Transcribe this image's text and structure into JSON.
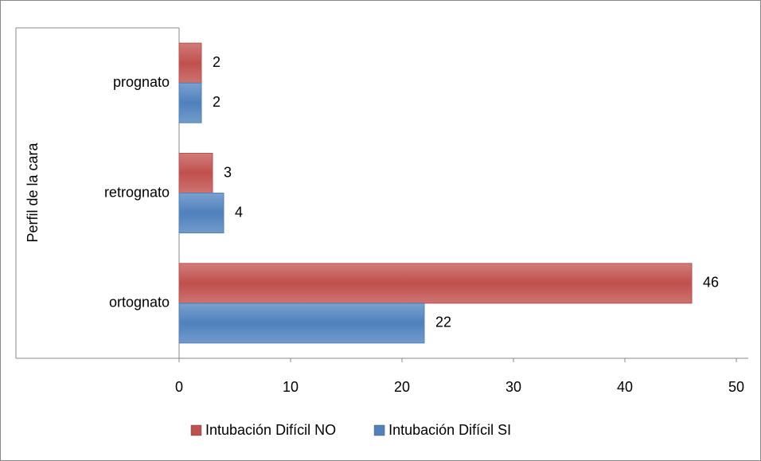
{
  "chart_data": {
    "type": "bar",
    "orientation": "horizontal",
    "y_label": "Perfil de la cara",
    "categories": [
      "ortognato",
      "retrognato",
      "prognato"
    ],
    "series": [
      {
        "name": "Intubación Difícil NO",
        "color": "#c0504d",
        "values": [
          46,
          3,
          2
        ]
      },
      {
        "name": "Intubación Difícil SI",
        "color": "#4f81bd",
        "values": [
          22,
          4,
          2
        ]
      }
    ],
    "xlim": [
      0,
      50
    ],
    "xticks": [
      0,
      10,
      20,
      30,
      40,
      50
    ],
    "legend": "bottom"
  }
}
